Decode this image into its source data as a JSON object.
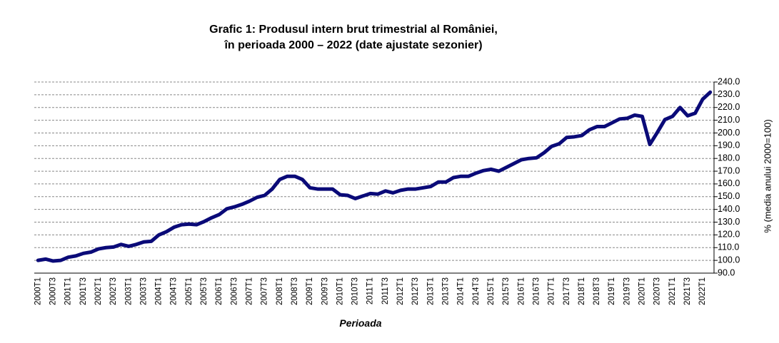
{
  "chart_data": {
    "type": "line",
    "title": [
      "Grafic 1: Produsul intern brut trimestrial al României,",
      "în perioada 2000 – 2022 (date ajustate sezonier)"
    ],
    "x_label": "Perioada",
    "y_label": "% (media anului 2000=100)",
    "categories": [
      "2000T1",
      null,
      "2000T3",
      null,
      "2001T1",
      null,
      "2001T3",
      null,
      "2002T1",
      null,
      "2002T3",
      null,
      "2003T1",
      null,
      "2003T3",
      null,
      "2004T1",
      null,
      "2004T3",
      null,
      "2005T1",
      null,
      "2005T3",
      null,
      "2006T1",
      null,
      "2006T3",
      null,
      "2007T1",
      null,
      "2007T3",
      null,
      "2008T1",
      null,
      "2008T3",
      null,
      "2009T1",
      null,
      "2009T3",
      null,
      "2010T1",
      null,
      "2010T3",
      null,
      "2011T1",
      null,
      "2011T3",
      null,
      "2012T1",
      null,
      "2012T3",
      null,
      "2013T1",
      null,
      "2013T3",
      null,
      "2014T1",
      null,
      "2014T3",
      null,
      "2015T1",
      null,
      "2015T3",
      null,
      "2016T1",
      null,
      "2016T3",
      null,
      "2017T1",
      null,
      "2017T3",
      null,
      "2018T1",
      null,
      "2018T3",
      null,
      "2019T1",
      null,
      "2019T3",
      null,
      "2020T1",
      null,
      "2020T3",
      null,
      "2021T1",
      null,
      "2021T3",
      null,
      "2022T1",
      null
    ],
    "values": [
      100,
      101,
      99.5,
      100,
      102.5,
      103.5,
      105.5,
      106.5,
      109,
      110,
      110.5,
      112.5,
      111,
      112.5,
      114.5,
      115,
      120,
      122.5,
      126,
      128,
      128.5,
      128,
      130.5,
      133.5,
      136,
      140.5,
      142,
      144,
      146.5,
      149.5,
      151,
      156,
      163.5,
      166,
      166,
      163.5,
      157,
      156,
      156,
      156,
      151.5,
      151,
      148.5,
      150.5,
      152.5,
      152,
      154.5,
      153,
      155,
      156,
      156,
      157,
      158,
      161.5,
      161.5,
      165,
      166,
      166,
      168.5,
      170.5,
      171.5,
      170,
      173,
      176,
      179,
      180,
      180.5,
      184.5,
      189.5,
      191.5,
      196.5,
      197,
      198,
      202.5,
      205,
      205,
      208,
      211,
      211.5,
      214,
      213,
      191,
      200.5,
      210.5,
      213,
      220,
      213.5,
      215.5,
      226.5,
      232
    ],
    "color": "#0a0a78",
    "ylim": [
      90,
      240
    ],
    "yticks": [
      {
        "value": 90,
        "label": "90.0"
      },
      {
        "value": 100,
        "label": "100.0"
      },
      {
        "value": 110,
        "label": "110.0"
      },
      {
        "value": 120,
        "label": "120.0"
      },
      {
        "value": 130,
        "label": "130.0"
      },
      {
        "value": 140,
        "label": "140.0"
      },
      {
        "value": 150,
        "label": "150.0"
      },
      {
        "value": 160,
        "label": "160.0"
      },
      {
        "value": 170,
        "label": "170.0"
      },
      {
        "value": 180,
        "label": "180.0"
      },
      {
        "value": 190,
        "label": "190.0"
      },
      {
        "value": 200,
        "label": "200.0"
      },
      {
        "value": 210,
        "label": "210.0"
      },
      {
        "value": 220,
        "label": "220.0"
      },
      {
        "value": 230,
        "label": "230.0"
      },
      {
        "value": 240,
        "label": "240.0"
      }
    ],
    "grid": true,
    "y_axis_side": "right"
  }
}
